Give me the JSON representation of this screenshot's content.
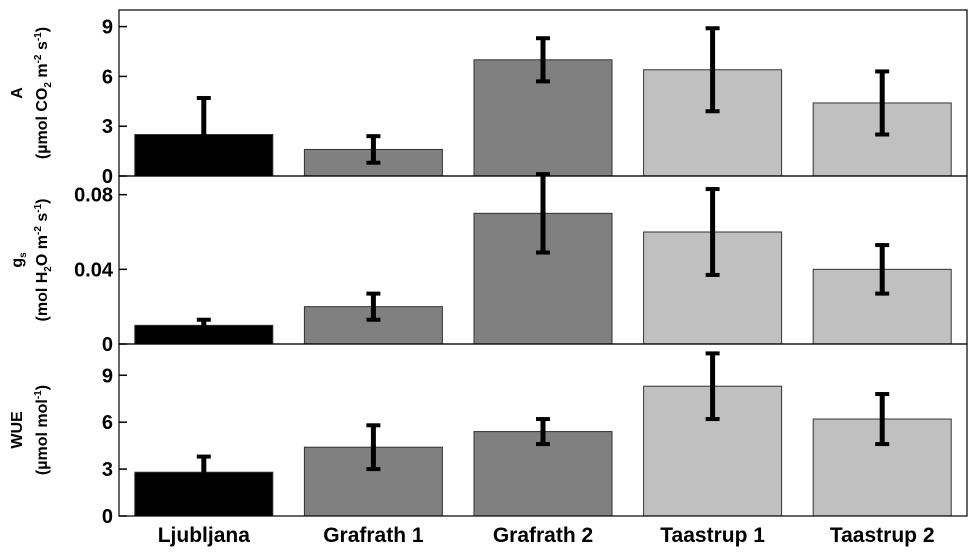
{
  "chart_data": {
    "type": "bar",
    "categories": [
      "Ljubljana",
      "Grafrath 1",
      "Grafrath 2",
      "Taastrup 1",
      "Taastrup 2"
    ],
    "bar_colors": [
      "#000000",
      "#808080",
      "#808080",
      "#c0c0c0",
      "#c0c0c0"
    ],
    "error_bar_color": "#000000",
    "panels": [
      {
        "ylabel_symbol": "A",
        "ylabel_unit_pre": "(µmol CO",
        "ylabel_unit_sub": "2",
        "ylabel_unit_mid": " m",
        "ylabel_unit_sup1": "-2",
        "ylabel_unit_mid2": " s",
        "ylabel_unit_sup2": "-1",
        "ylabel_unit_post": ")",
        "ylim": [
          0,
          10
        ],
        "yticks": [
          0,
          3,
          6,
          9
        ],
        "ytick_labels": [
          "0",
          "3",
          "6",
          "9"
        ],
        "values": [
          2.5,
          1.6,
          7.0,
          6.4,
          4.4
        ],
        "errors": [
          2.2,
          0.8,
          1.3,
          2.5,
          1.9
        ]
      },
      {
        "ylabel_symbol": "g",
        "ylabel_symbol_sub": "s",
        "ylabel_unit_pre": "(mol H",
        "ylabel_unit_sub": "2",
        "ylabel_unit_mid": "O m",
        "ylabel_unit_sup1": "-2",
        "ylabel_unit_mid2": " s",
        "ylabel_unit_sup2": "-1",
        "ylabel_unit_post": ")",
        "ylim": [
          0,
          0.09
        ],
        "yticks": [
          0,
          0.04,
          0.08
        ],
        "ytick_labels": [
          "0",
          "0.04",
          "0.08"
        ],
        "values": [
          0.01,
          0.02,
          0.07,
          0.06,
          0.04
        ],
        "errors": [
          0.003,
          0.007,
          0.021,
          0.023,
          0.013
        ]
      },
      {
        "ylabel_symbol": "WUE",
        "ylabel_unit_pre": "(µmol mol",
        "ylabel_unit_sup1": "-1",
        "ylabel_unit_post": ")",
        "ylim": [
          0,
          11
        ],
        "yticks": [
          0,
          3,
          6,
          9
        ],
        "ytick_labels": [
          "0",
          "3",
          "6",
          "9"
        ],
        "values": [
          2.8,
          4.4,
          5.4,
          8.3,
          6.2
        ],
        "errors": [
          1.0,
          1.4,
          0.8,
          2.1,
          1.6
        ]
      }
    ]
  }
}
